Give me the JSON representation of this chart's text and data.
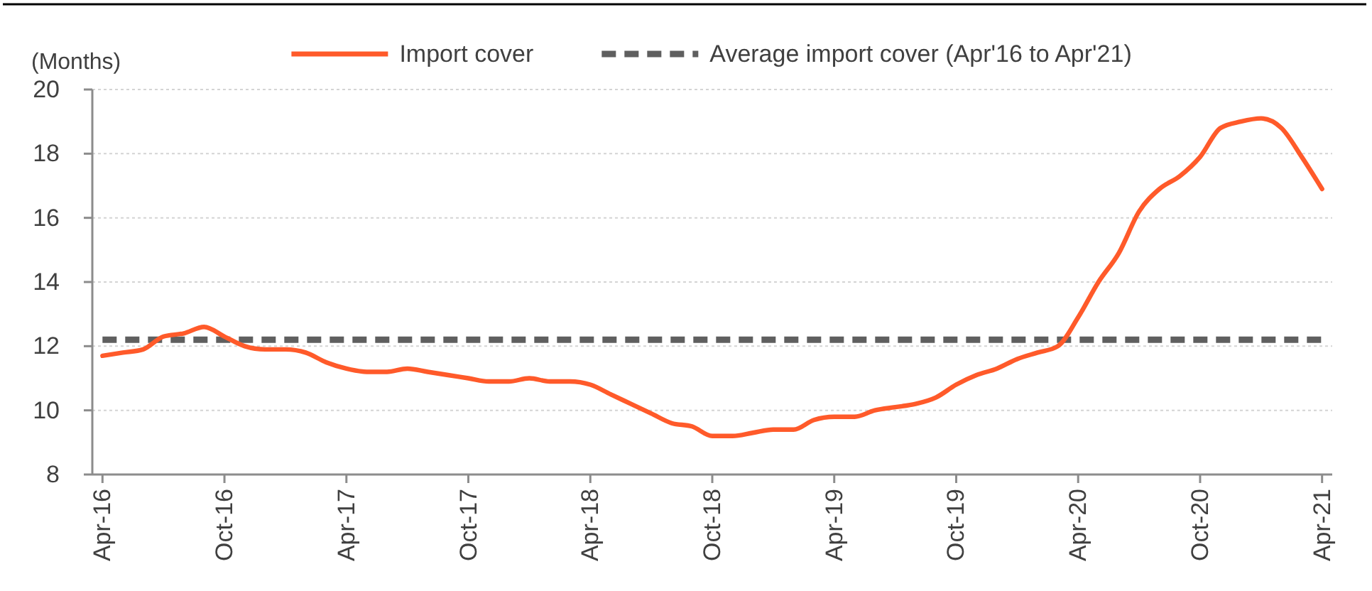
{
  "chart_data": {
    "type": "line",
    "ylabel": "(Months)",
    "categories": [
      "Apr-16",
      null,
      null,
      null,
      null,
      null,
      "Oct-16",
      null,
      null,
      null,
      null,
      null,
      "Apr-17",
      null,
      null,
      null,
      null,
      null,
      "Oct-17",
      null,
      null,
      null,
      null,
      null,
      "Apr-18",
      null,
      null,
      null,
      null,
      null,
      "Oct-18",
      null,
      null,
      null,
      null,
      null,
      "Apr-19",
      null,
      null,
      null,
      null,
      null,
      "Oct-19",
      null,
      null,
      null,
      null,
      null,
      "Apr-20",
      null,
      null,
      null,
      null,
      null,
      "Oct-20",
      null,
      null,
      null,
      null,
      null,
      "Apr-21"
    ],
    "series": [
      {
        "name": "Import cover",
        "color": "#ff5a2a",
        "values": [
          11.7,
          11.8,
          11.9,
          12.3,
          12.4,
          12.6,
          12.3,
          12.0,
          11.9,
          11.9,
          11.8,
          11.5,
          11.3,
          11.2,
          11.2,
          11.3,
          11.2,
          11.1,
          11.0,
          10.9,
          10.9,
          11.0,
          10.9,
          10.9,
          10.8,
          10.5,
          10.2,
          9.9,
          9.6,
          9.5,
          9.2,
          9.2,
          9.3,
          9.4,
          9.4,
          9.7,
          9.8,
          9.8,
          10.0,
          10.1,
          10.2,
          10.4,
          10.8,
          11.1,
          11.3,
          11.6,
          11.8,
          12.0,
          12.9,
          14.0,
          14.9,
          16.2,
          16.9,
          17.3,
          17.9,
          18.8,
          19.0,
          19.1,
          18.8,
          17.9,
          16.9
        ]
      }
    ],
    "ref_lines": [
      {
        "axis": "y",
        "value": 12.2,
        "label": "Average import cover (Apr'16 to Apr'21)",
        "color": "#5f5f5f",
        "line_style": "dashed"
      }
    ],
    "ylim": [
      8,
      20
    ],
    "yticks": [
      8,
      10,
      12,
      14,
      16,
      18,
      20
    ],
    "grid": "y",
    "legend": "top"
  }
}
